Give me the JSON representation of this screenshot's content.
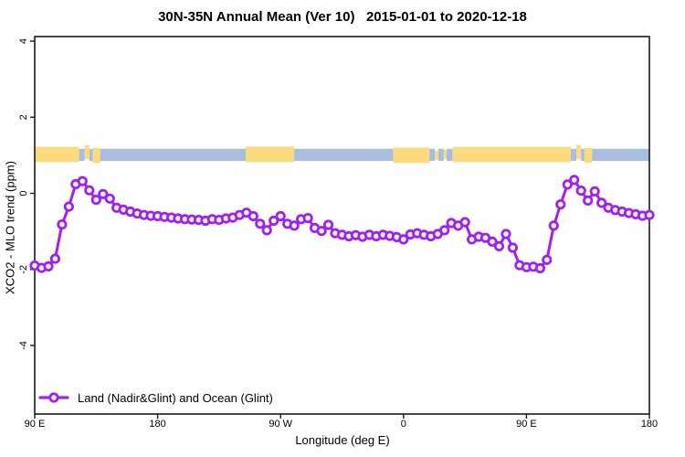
{
  "title": "30N-35N Annual Mean (Ver 10)   2015-01-01 to 2020-12-18",
  "chart_data": {
    "type": "line",
    "title": "30N-35N Annual Mean (Ver 10)   2015-01-01 to 2020-12-18",
    "xlabel": "Longitude (deg E)",
    "ylabel": "XCO2 - MLO trend (ppm)",
    "xlim": [
      90,
      540
    ],
    "ylim": [
      -5.8,
      4.1
    ],
    "grid": false,
    "legend_position": "bottom-left",
    "x_ticks": [
      {
        "deg": 90,
        "label": "90 E"
      },
      {
        "deg": 180,
        "label": "180"
      },
      {
        "deg": 270,
        "label": "90 W"
      },
      {
        "deg": 360,
        "label": "0"
      },
      {
        "deg": 450,
        "label": "90 E"
      },
      {
        "deg": 540,
        "label": "180"
      }
    ],
    "y_ticks": [
      {
        "value": 4,
        "label": "4"
      },
      {
        "value": 2,
        "label": "2"
      },
      {
        "value": 0,
        "label": "0"
      },
      {
        "value": -2,
        "label": "-2"
      },
      {
        "value": -4,
        "label": "-4"
      }
    ],
    "series": [
      {
        "name": "Land (Nadir&Glint) and Ocean (Glint)",
        "color": "#A020F0",
        "marker": "open-circle",
        "x_start": 90,
        "x_step": 5,
        "values": [
          -1.9,
          -1.96,
          -1.92,
          -1.72,
          -0.82,
          -0.35,
          0.24,
          0.32,
          0.08,
          -0.17,
          -0.02,
          -0.14,
          -0.38,
          -0.43,
          -0.48,
          -0.53,
          -0.57,
          -0.59,
          -0.6,
          -0.62,
          -0.64,
          -0.66,
          -0.68,
          -0.69,
          -0.7,
          -0.72,
          -0.68,
          -0.7,
          -0.66,
          -0.64,
          -0.57,
          -0.51,
          -0.6,
          -0.8,
          -0.97,
          -0.72,
          -0.6,
          -0.8,
          -0.85,
          -0.68,
          -0.65,
          -0.91,
          -0.99,
          -0.83,
          -1.05,
          -1.09,
          -1.13,
          -1.1,
          -1.14,
          -1.09,
          -1.13,
          -1.09,
          -1.12,
          -1.15,
          -1.21,
          -1.08,
          -1.05,
          -1.09,
          -1.13,
          -1.07,
          -0.97,
          -0.78,
          -0.85,
          -0.76,
          -1.21,
          -1.14,
          -1.17,
          -1.27,
          -1.39,
          -1.07,
          -1.43,
          -1.89,
          -1.94,
          -1.93,
          -1.97,
          -1.75,
          -0.85,
          -0.29,
          0.23,
          0.35,
          0.07,
          -0.19,
          0.05,
          -0.25,
          -0.38,
          -0.44,
          -0.48,
          -0.52,
          -0.55,
          -0.59,
          -0.57
        ]
      }
    ],
    "band": {
      "description": "land/ocean strip along 30N-35N",
      "land_color": "#FBDB7D",
      "ocean_color": "#A9BEDC",
      "segments": [
        {
          "from": 90,
          "to": 122.5,
          "type": "land",
          "top": 1.22,
          "bottom": 0.82
        },
        {
          "from": 122.5,
          "to": 126.5,
          "type": "ocean",
          "top": 1.17,
          "bottom": 0.85
        },
        {
          "from": 126.5,
          "to": 130,
          "type": "land",
          "top": 1.27,
          "bottom": 0.9
        },
        {
          "from": 130,
          "to": 132.5,
          "type": "ocean",
          "top": 1.17,
          "bottom": 0.85
        },
        {
          "from": 132.5,
          "to": 138,
          "type": "land",
          "top": 1.19,
          "bottom": 0.8
        },
        {
          "from": 138,
          "to": 244.5,
          "type": "ocean",
          "top": 1.17,
          "bottom": 0.85
        },
        {
          "from": 244.5,
          "to": 280,
          "type": "land",
          "top": 1.23,
          "bottom": 0.82
        },
        {
          "from": 280,
          "to": 352.5,
          "type": "ocean",
          "top": 1.17,
          "bottom": 0.85
        },
        {
          "from": 352.5,
          "to": 379,
          "type": "land",
          "top": 1.2,
          "bottom": 0.8
        },
        {
          "from": 379,
          "to": 383,
          "type": "ocean",
          "top": 1.17,
          "bottom": 0.85
        },
        {
          "from": 383,
          "to": 385.5,
          "type": "land",
          "top": 1.12,
          "bottom": 0.88
        },
        {
          "from": 385.5,
          "to": 389.5,
          "type": "ocean",
          "top": 1.17,
          "bottom": 0.85
        },
        {
          "from": 389.5,
          "to": 391.5,
          "type": "land",
          "top": 1.14,
          "bottom": 0.9
        },
        {
          "from": 391.5,
          "to": 396,
          "type": "ocean",
          "top": 1.17,
          "bottom": 0.85
        },
        {
          "from": 396,
          "to": 482.5,
          "type": "land",
          "top": 1.22,
          "bottom": 0.82
        },
        {
          "from": 482.5,
          "to": 486.5,
          "type": "ocean",
          "top": 1.17,
          "bottom": 0.85
        },
        {
          "from": 486.5,
          "to": 490,
          "type": "land",
          "top": 1.27,
          "bottom": 0.9
        },
        {
          "from": 490,
          "to": 492.5,
          "type": "ocean",
          "top": 1.17,
          "bottom": 0.85
        },
        {
          "from": 492.5,
          "to": 498,
          "type": "land",
          "top": 1.19,
          "bottom": 0.8
        },
        {
          "from": 498,
          "to": 540,
          "type": "ocean",
          "top": 1.17,
          "bottom": 0.85
        }
      ]
    }
  }
}
